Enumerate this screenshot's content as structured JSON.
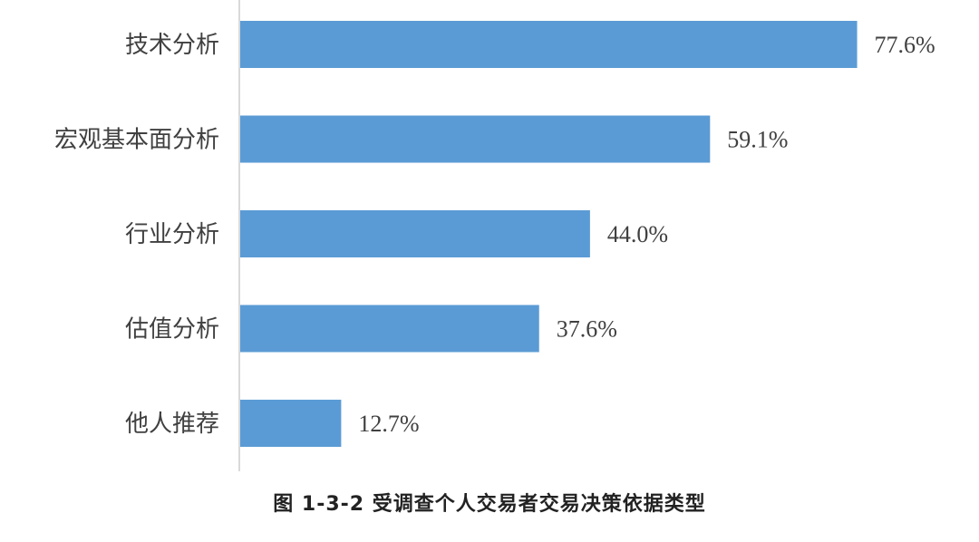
{
  "chart_data": {
    "type": "bar",
    "orientation": "horizontal",
    "categories": [
      "技术分析",
      "宏观基本面分析",
      "行业分析",
      "估值分析",
      "他人推荐"
    ],
    "values": [
      77.6,
      59.1,
      44.0,
      37.6,
      12.7
    ],
    "value_labels": [
      "77.6%",
      "59.1%",
      "44.0%",
      "37.6%",
      "12.7%"
    ],
    "unit": "%",
    "xlim": [
      0,
      100
    ],
    "grid": false,
    "legend": "none",
    "bar_color": "#5b9bd5",
    "axis_color": "#d9d9d9"
  },
  "caption": "图 1-3-2 受调查个人交易者交易决策依据类型"
}
